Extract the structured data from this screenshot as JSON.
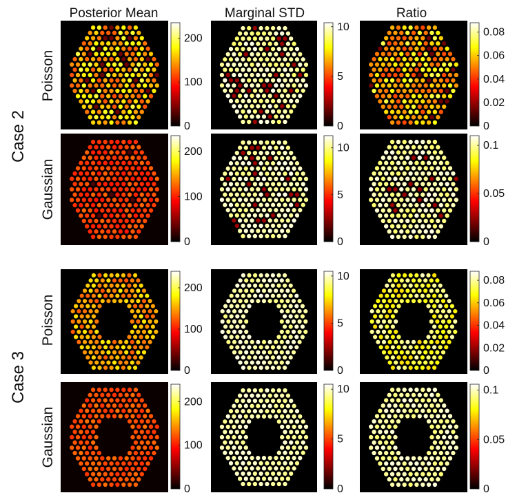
{
  "figure": {
    "columns": [
      {
        "title": "Posterior Mean"
      },
      {
        "title": "Marginal STD"
      },
      {
        "title": "Ratio"
      }
    ],
    "cases": [
      {
        "label": "Case 2",
        "rows": [
          {
            "label": "Poisson"
          },
          {
            "label": "Gaussian"
          }
        ]
      },
      {
        "label": "Case 3",
        "rows": [
          {
            "label": "Poisson"
          },
          {
            "label": "Gaussian"
          }
        ]
      }
    ]
  },
  "chart_data": [
    {
      "type": "heatmap",
      "case": "Case 2",
      "model": "Poisson",
      "quantity": "Posterior Mean",
      "hole": false,
      "colorbar": {
        "range": [
          0,
          235
        ],
        "ticks": [
          0,
          100,
          200
        ]
      },
      "level": 0.66,
      "spread": 0.34
    },
    {
      "type": "heatmap",
      "case": "Case 2",
      "model": "Poisson",
      "quantity": "Marginal STD",
      "hole": false,
      "colorbar": {
        "range": [
          0,
          10.4
        ],
        "ticks": [
          0,
          5,
          10
        ]
      },
      "level": 0.92,
      "spread": 0.12
    },
    {
      "type": "heatmap",
      "case": "Case 2",
      "model": "Poisson",
      "quantity": "Ratio",
      "hole": false,
      "colorbar": {
        "range": [
          0,
          0.088
        ],
        "ticks": [
          0,
          0.02,
          0.04,
          0.06,
          0.08
        ]
      },
      "level": 0.66,
      "spread": 0.36
    },
    {
      "type": "heatmap",
      "case": "Case 2",
      "model": "Gaussian",
      "quantity": "Posterior Mean",
      "hole": false,
      "colorbar": {
        "range": [
          0,
          235
        ],
        "ticks": [
          0,
          100,
          200
        ]
      },
      "level": 0.47,
      "spread": 0.12
    },
    {
      "type": "heatmap",
      "case": "Case 2",
      "model": "Gaussian",
      "quantity": "Marginal STD",
      "hole": false,
      "colorbar": {
        "range": [
          0,
          11.3
        ],
        "ticks": [
          0,
          5,
          10
        ]
      },
      "level": 0.93,
      "spread": 0.1
    },
    {
      "type": "heatmap",
      "case": "Case 2",
      "model": "Gaussian",
      "quantity": "Ratio",
      "hole": false,
      "colorbar": {
        "range": [
          0,
          0.11
        ],
        "ticks": [
          0,
          0.05,
          0.1
        ]
      },
      "level": 0.92,
      "spread": 0.12
    },
    {
      "type": "heatmap",
      "case": "Case 3",
      "model": "Poisson",
      "quantity": "Posterior Mean",
      "hole": true,
      "colorbar": {
        "range": [
          0,
          240
        ],
        "ticks": [
          0,
          100,
          200
        ]
      },
      "level": 0.62,
      "spread": 0.24
    },
    {
      "type": "heatmap",
      "case": "Case 3",
      "model": "Poisson",
      "quantity": "Marginal STD",
      "hole": true,
      "colorbar": {
        "range": [
          0,
          10.5
        ],
        "ticks": [
          0,
          5,
          10
        ]
      },
      "level": 0.93,
      "spread": 0.1
    },
    {
      "type": "heatmap",
      "case": "Case 3",
      "model": "Poisson",
      "quantity": "Ratio",
      "hole": true,
      "colorbar": {
        "range": [
          0,
          0.088
        ],
        "ticks": [
          0,
          0.02,
          0.04,
          0.06,
          0.08
        ]
      },
      "level": 0.82,
      "spread": 0.24
    },
    {
      "type": "heatmap",
      "case": "Case 3",
      "model": "Gaussian",
      "quantity": "Posterior Mean",
      "hole": true,
      "colorbar": {
        "range": [
          0,
          240
        ],
        "ticks": [
          0,
          100,
          200
        ]
      },
      "level": 0.5,
      "spread": 0.1
    },
    {
      "type": "heatmap",
      "case": "Case 3",
      "model": "Gaussian",
      "quantity": "Marginal STD",
      "hole": true,
      "colorbar": {
        "range": [
          0,
          10.5
        ],
        "ticks": [
          0,
          5,
          10
        ]
      },
      "level": 0.93,
      "spread": 0.08
    },
    {
      "type": "heatmap",
      "case": "Case 3",
      "model": "Gaussian",
      "quantity": "Ratio",
      "hole": true,
      "colorbar": {
        "range": [
          0,
          0.106
        ],
        "ticks": [
          0,
          0.05,
          0.1
        ]
      },
      "level": 0.92,
      "spread": 0.1
    }
  ]
}
